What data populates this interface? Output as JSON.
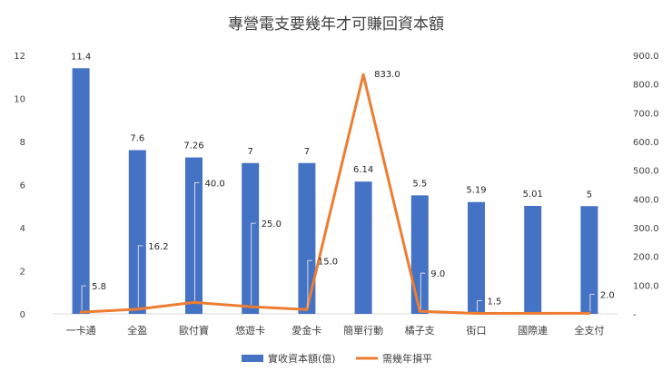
{
  "chart_data": {
    "type": "bar",
    "title": "專營電支要幾年才可賺回資本額",
    "categories": [
      "一卡通",
      "全盈",
      "歐付寶",
      "悠遊卡",
      "愛金卡",
      "簡單行動",
      "橘子支",
      "街口",
      "國際連",
      "全支付"
    ],
    "series": [
      {
        "name": "實收資本額(億)",
        "type": "bar",
        "axis": "left",
        "color": "#4472C4",
        "values": [
          11.4,
          7.6,
          7.26,
          7,
          7,
          6.14,
          5.5,
          5.19,
          5.01,
          5
        ],
        "labels": [
          "11.4",
          "7.6",
          "7.26",
          "7",
          "7",
          "6.14",
          "5.5",
          "5.19",
          "5.01",
          "5"
        ]
      },
      {
        "name": "需幾年損平",
        "type": "line",
        "axis": "right",
        "color": "#ED7D31",
        "values": [
          5.8,
          16.2,
          40.0,
          25.0,
          15.0,
          833.0,
          9.0,
          1.5,
          null,
          2.0
        ],
        "labels": [
          "5.8",
          "16.2",
          "40.0",
          "25.0",
          "15.0",
          "833.0",
          "9.0",
          "1.5",
          "",
          "2.0"
        ]
      }
    ],
    "y_left": {
      "min": 0,
      "max": 12,
      "ticks": [
        "0",
        "2",
        "4",
        "6",
        "8",
        "10",
        "12"
      ]
    },
    "y_right": {
      "min": 0,
      "max": 900,
      "ticks": [
        "-",
        "100.0",
        "200.0",
        "300.0",
        "400.0",
        "500.0",
        "600.0",
        "700.0",
        "800.0",
        "900.0"
      ]
    },
    "grid": false,
    "legend_position": "bottom"
  }
}
